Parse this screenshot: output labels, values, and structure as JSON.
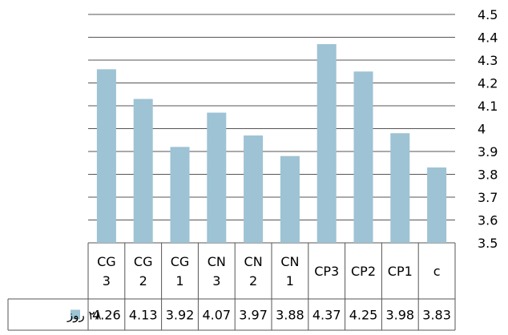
{
  "chart_data": {
    "type": "table",
    "categories": [
      [
        "CG",
        "3"
      ],
      [
        "CG",
        "2"
      ],
      [
        "CG",
        "1"
      ],
      [
        "CN",
        "3"
      ],
      [
        "CN",
        "2"
      ],
      [
        "CN",
        "1"
      ],
      [
        "CP3"
      ],
      [
        "CP2"
      ],
      [
        "CP1"
      ],
      [
        "c"
      ]
    ],
    "series": [
      {
        "name": "۲۸ روز",
        "values": [
          4.26,
          4.13,
          3.92,
          4.07,
          3.97,
          3.88,
          4.37,
          4.25,
          3.98,
          3.83
        ],
        "value_labels": [
          "4.26",
          "4.13",
          "3.92",
          "4.07",
          "3.97",
          "3.88",
          "4.37",
          "4.25",
          "3.98",
          "3.83"
        ]
      }
    ],
    "y_ticks": [
      "3.5",
      "3.6",
      "3.7",
      "3.8",
      "3.9",
      "4",
      "4.1",
      "4.2",
      "4.3",
      "4.4",
      "4.5"
    ],
    "ylim": [
      3.5,
      4.5
    ],
    "y_axis_side": "right",
    "grid": true,
    "legend": "bottom-left",
    "has_data_table": true,
    "colors": {
      "bar": "#9dc3d4",
      "gridline": "#555555",
      "table_border": "#555555"
    }
  }
}
